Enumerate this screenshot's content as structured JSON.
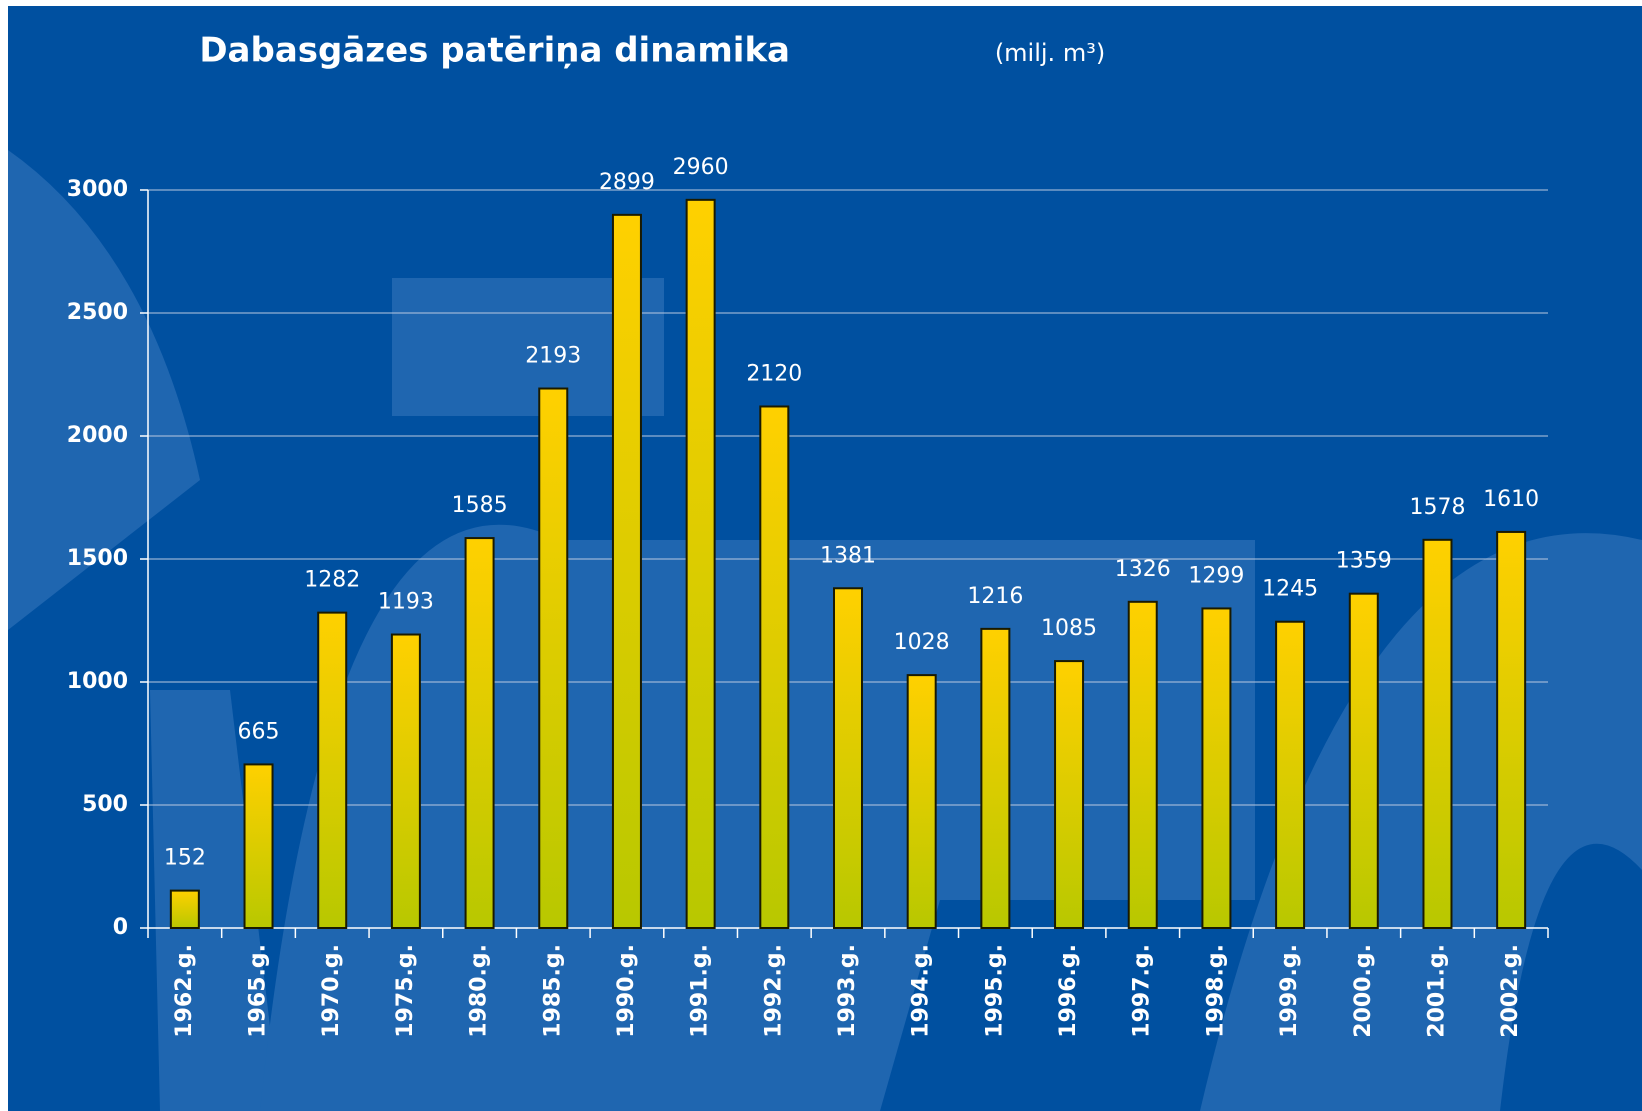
{
  "chart_data": {
    "type": "bar",
    "title": "Dabasgāzes patēriņa dinamika",
    "subtitle": "(milj. m³)",
    "categories": [
      "1962.g.",
      "1965.g.",
      "1970.g.",
      "1975.g.",
      "1980.g.",
      "1985.g.",
      "1990.g.",
      "1991.g.",
      "1992.g.",
      "1993.g.",
      "1994.g.",
      "1995.g.",
      "1996.g.",
      "1997.g.",
      "1998.g.",
      "1999.g.",
      "2000.g.",
      "2001.g.",
      "2002.g."
    ],
    "values": [
      152,
      665,
      1282,
      1193,
      1585,
      2193,
      2899,
      2960,
      2120,
      1381,
      1028,
      1216,
      1085,
      1326,
      1299,
      1245,
      1359,
      1578,
      1610
    ],
    "color": "#e8d000",
    "ylim": [
      0,
      3000
    ],
    "yticks": [
      0,
      500,
      1000,
      1500,
      2000,
      2500,
      3000
    ],
    "grid": true
  }
}
